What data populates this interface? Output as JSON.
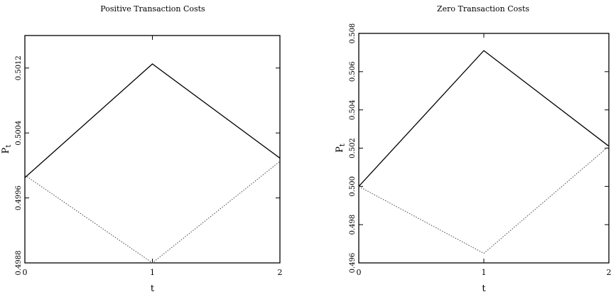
{
  "chart_data": [
    {
      "type": "line",
      "title": "Positive Transaction Costs",
      "xlabel": "t",
      "ylabel": "P_t",
      "x": [
        0,
        1,
        2
      ],
      "xticks": [
        "0",
        "1",
        "2"
      ],
      "yticks": [
        "0.4988",
        "0.4996",
        "0.5004",
        "0.5012"
      ],
      "xlim": [
        0,
        2
      ],
      "ylim": [
        0.4988,
        0.5016
      ],
      "grid": false,
      "series": [
        {
          "values": [
            0.49985,
            0.50125,
            0.50009
          ],
          "style": "solid",
          "color": "#000000"
        },
        {
          "values": [
            0.49988,
            0.4988,
            0.50005
          ],
          "style": "dotted",
          "color": "#555555"
        }
      ]
    },
    {
      "type": "line",
      "title": "Zero Transaction Costs",
      "xlabel": "t",
      "ylabel": "P_t",
      "x": [
        0,
        1,
        2
      ],
      "xticks": [
        "0",
        "1",
        "2"
      ],
      "yticks": [
        "0.496",
        "0.498",
        "0.500",
        "0.502",
        "0.504",
        "0.506",
        "0.508"
      ],
      "xlim": [
        0,
        2
      ],
      "ylim": [
        0.496,
        0.508
      ],
      "grid": false,
      "series": [
        {
          "values": [
            0.5,
            0.5071,
            0.5021
          ],
          "style": "solid",
          "color": "#000000"
        },
        {
          "values": [
            0.5,
            0.4965,
            0.5021
          ],
          "style": "dotted",
          "color": "#555555"
        }
      ]
    }
  ]
}
